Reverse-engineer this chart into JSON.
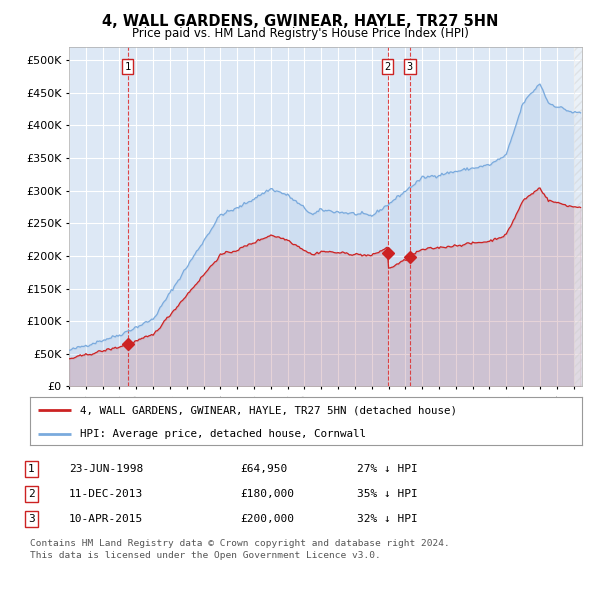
{
  "title": "4, WALL GARDENS, GWINEAR, HAYLE, TR27 5HN",
  "subtitle": "Price paid vs. HM Land Registry's House Price Index (HPI)",
  "ylim": [
    0,
    520000
  ],
  "yticks": [
    0,
    50000,
    100000,
    150000,
    200000,
    250000,
    300000,
    350000,
    400000,
    450000,
    500000
  ],
  "xlim_start": 1995.04,
  "xlim_end": 2025.5,
  "plot_bg": "#dde8f5",
  "grid_color": "#ffffff",
  "purchases": [
    {
      "index": 1,
      "date_x": 1998.48,
      "price": 64950
    },
    {
      "index": 2,
      "date_x": 2013.94,
      "price": 180000
    },
    {
      "index": 3,
      "date_x": 2015.27,
      "price": 200000
    }
  ],
  "legend_label_red": "4, WALL GARDENS, GWINEAR, HAYLE, TR27 5HN (detached house)",
  "legend_label_blue": "HPI: Average price, detached house, Cornwall",
  "footer1": "Contains HM Land Registry data © Crown copyright and database right 2024.",
  "footer2": "This data is licensed under the Open Government Licence v3.0.",
  "table_rows": [
    {
      "index": 1,
      "date": "23-JUN-1998",
      "price": "£64,950",
      "pct": "27% ↓ HPI"
    },
    {
      "index": 2,
      "date": "11-DEC-2013",
      "price": "£180,000",
      "pct": "35% ↓ HPI"
    },
    {
      "index": 3,
      "date": "10-APR-2015",
      "price": "£200,000",
      "pct": "32% ↓ HPI"
    }
  ],
  "hpi_color": "#7aaadd",
  "price_color": "#cc2222"
}
